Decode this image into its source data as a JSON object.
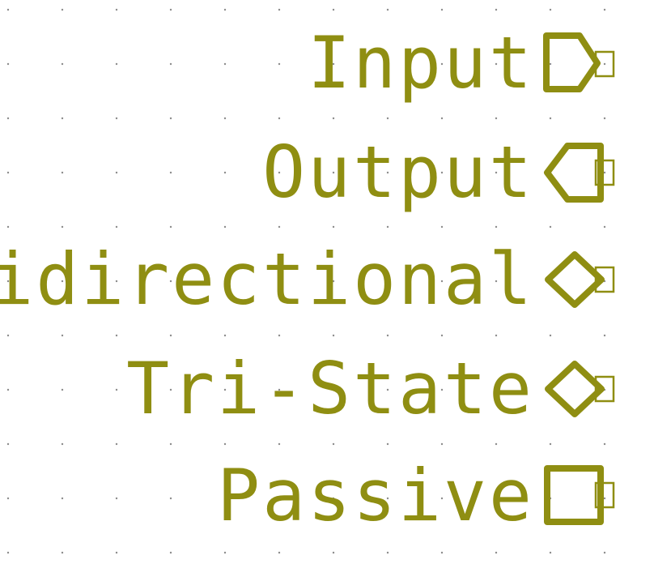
{
  "canvas": {
    "background": "#ffffff",
    "grid_color": "#8c8c8c",
    "label_color": "#8f8e12"
  },
  "labels": [
    {
      "text": "Input",
      "shape": "input"
    },
    {
      "text": "Output",
      "shape": "output"
    },
    {
      "text": "Bidirectional",
      "shape": "bidirectional"
    },
    {
      "text": "Tri-State",
      "shape": "tristate"
    },
    {
      "text": "Passive",
      "shape": "passive"
    }
  ]
}
